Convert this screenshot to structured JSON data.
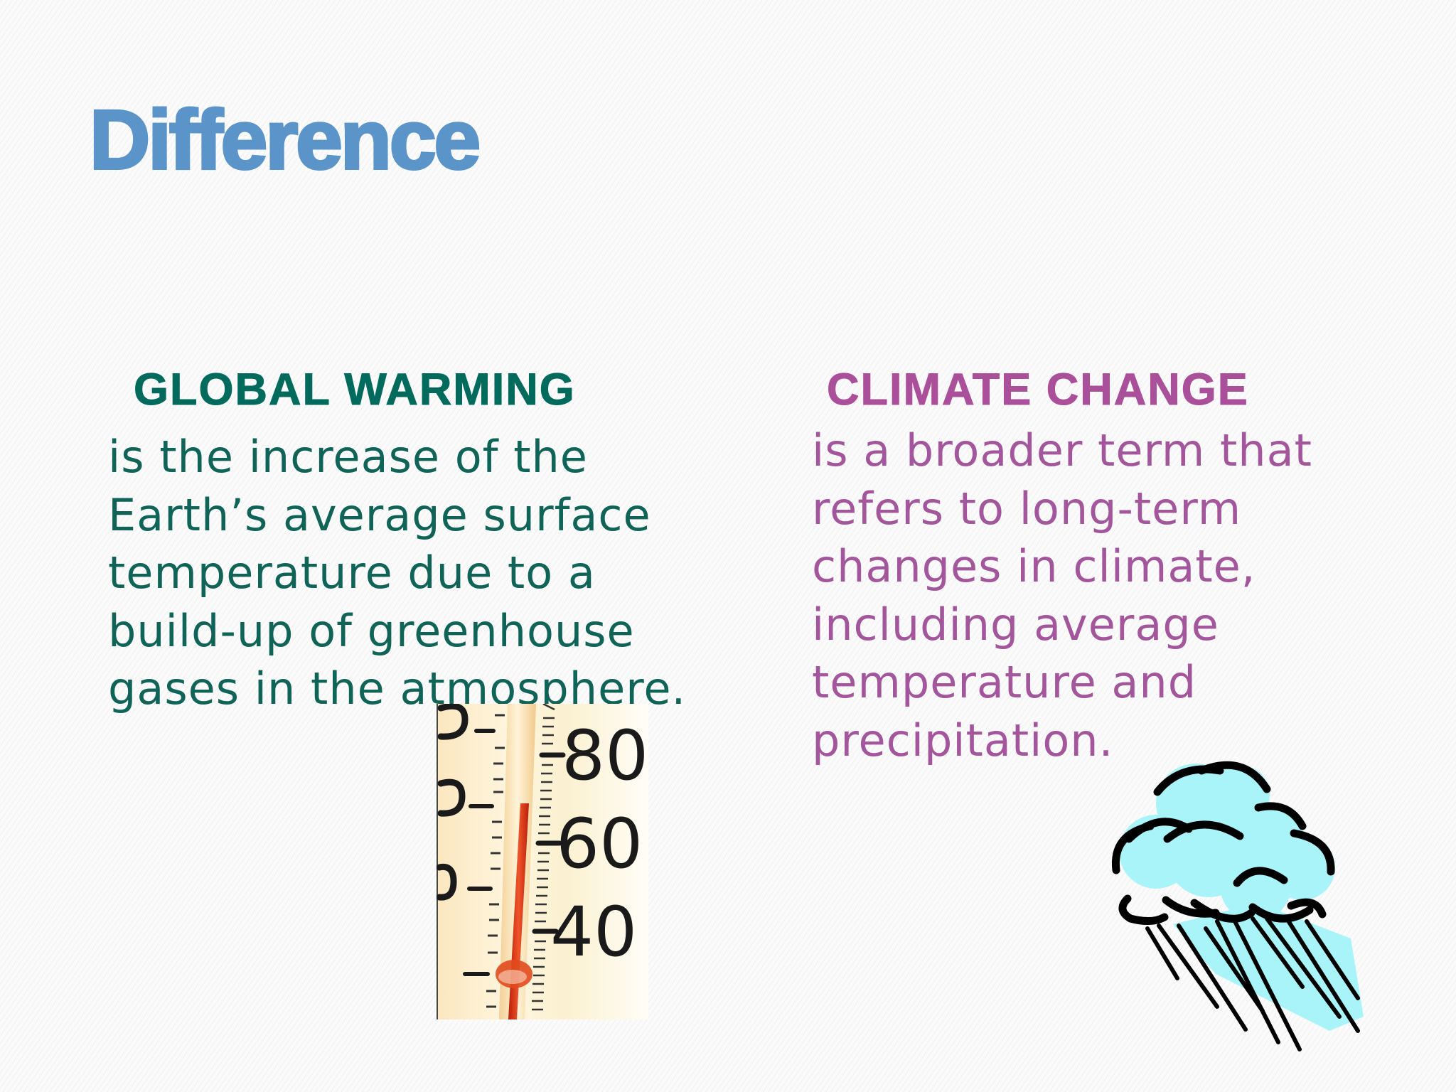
{
  "slide": {
    "title": "Difference",
    "global_warming": {
      "heading": "GLOBAL WARMING",
      "body": "is the increase of the\nEarth’s average surface\ntemperature due to a\nbuild-up of greenhouse\ngases in the atmosphere.",
      "image": "thermometer-photo",
      "thermometer_labels": [
        "80",
        "60",
        "40"
      ]
    },
    "climate_change": {
      "heading": "CLIMATE CHANGE",
      "body": "is a broader term that\nrefers to long-term\nchanges in climate,\nincluding average\ntemperature and\nprecipitation.",
      "image": "rain-cloud-icon"
    }
  },
  "colors": {
    "title": "#5a94c8",
    "global_warming": "#0f6357",
    "climate_change": "#a3569c",
    "cloud_fill": "#a8f4f8",
    "mercury": "#e03a10"
  }
}
